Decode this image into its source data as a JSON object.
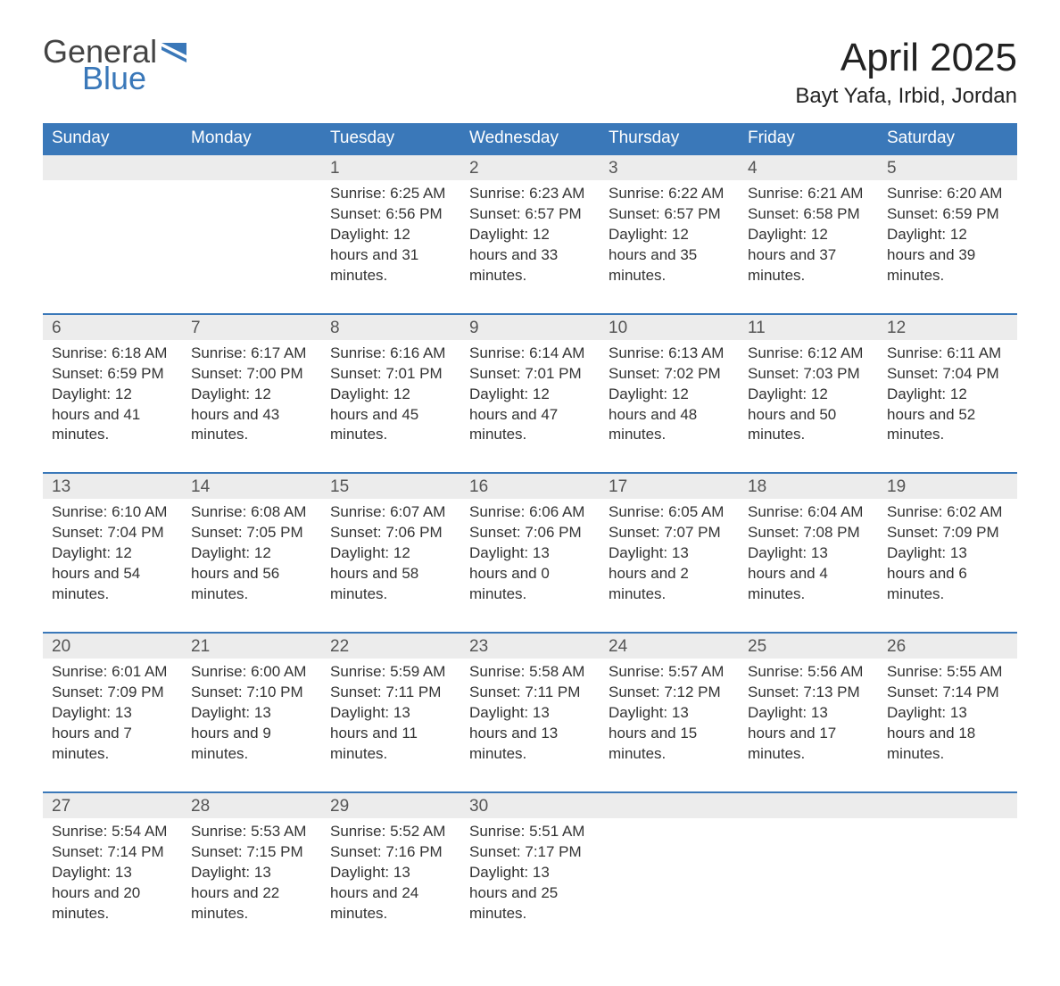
{
  "brand": {
    "word1": "General",
    "word2": "Blue",
    "accent_color": "#3a78b9"
  },
  "title": "April 2025",
  "location": "Bayt Yafa, Irbid, Jordan",
  "day_headers": [
    "Sunday",
    "Monday",
    "Tuesday",
    "Wednesday",
    "Thursday",
    "Friday",
    "Saturday"
  ],
  "colors": {
    "header_bg": "#3a78b9",
    "header_text": "#ffffff",
    "daynum_bg": "#ececec",
    "row_border": "#3a78b9",
    "body_text": "#333333",
    "background": "#ffffff"
  },
  "fonts": {
    "title_size_pt": 33,
    "location_size_pt": 18,
    "header_size_pt": 14,
    "cell_size_pt": 13
  },
  "labels": {
    "sunrise": "Sunrise:",
    "sunset": "Sunset:",
    "daylight": "Daylight:"
  },
  "weeks": [
    [
      null,
      null,
      {
        "day": "1",
        "sunrise": "6:25 AM",
        "sunset": "6:56 PM",
        "daylight": "12 hours and 31 minutes."
      },
      {
        "day": "2",
        "sunrise": "6:23 AM",
        "sunset": "6:57 PM",
        "daylight": "12 hours and 33 minutes."
      },
      {
        "day": "3",
        "sunrise": "6:22 AM",
        "sunset": "6:57 PM",
        "daylight": "12 hours and 35 minutes."
      },
      {
        "day": "4",
        "sunrise": "6:21 AM",
        "sunset": "6:58 PM",
        "daylight": "12 hours and 37 minutes."
      },
      {
        "day": "5",
        "sunrise": "6:20 AM",
        "sunset": "6:59 PM",
        "daylight": "12 hours and 39 minutes."
      }
    ],
    [
      {
        "day": "6",
        "sunrise": "6:18 AM",
        "sunset": "6:59 PM",
        "daylight": "12 hours and 41 minutes."
      },
      {
        "day": "7",
        "sunrise": "6:17 AM",
        "sunset": "7:00 PM",
        "daylight": "12 hours and 43 minutes."
      },
      {
        "day": "8",
        "sunrise": "6:16 AM",
        "sunset": "7:01 PM",
        "daylight": "12 hours and 45 minutes."
      },
      {
        "day": "9",
        "sunrise": "6:14 AM",
        "sunset": "7:01 PM",
        "daylight": "12 hours and 47 minutes."
      },
      {
        "day": "10",
        "sunrise": "6:13 AM",
        "sunset": "7:02 PM",
        "daylight": "12 hours and 48 minutes."
      },
      {
        "day": "11",
        "sunrise": "6:12 AM",
        "sunset": "7:03 PM",
        "daylight": "12 hours and 50 minutes."
      },
      {
        "day": "12",
        "sunrise": "6:11 AM",
        "sunset": "7:04 PM",
        "daylight": "12 hours and 52 minutes."
      }
    ],
    [
      {
        "day": "13",
        "sunrise": "6:10 AM",
        "sunset": "7:04 PM",
        "daylight": "12 hours and 54 minutes."
      },
      {
        "day": "14",
        "sunrise": "6:08 AM",
        "sunset": "7:05 PM",
        "daylight": "12 hours and 56 minutes."
      },
      {
        "day": "15",
        "sunrise": "6:07 AM",
        "sunset": "7:06 PM",
        "daylight": "12 hours and 58 minutes."
      },
      {
        "day": "16",
        "sunrise": "6:06 AM",
        "sunset": "7:06 PM",
        "daylight": "13 hours and 0 minutes."
      },
      {
        "day": "17",
        "sunrise": "6:05 AM",
        "sunset": "7:07 PM",
        "daylight": "13 hours and 2 minutes."
      },
      {
        "day": "18",
        "sunrise": "6:04 AM",
        "sunset": "7:08 PM",
        "daylight": "13 hours and 4 minutes."
      },
      {
        "day": "19",
        "sunrise": "6:02 AM",
        "sunset": "7:09 PM",
        "daylight": "13 hours and 6 minutes."
      }
    ],
    [
      {
        "day": "20",
        "sunrise": "6:01 AM",
        "sunset": "7:09 PM",
        "daylight": "13 hours and 7 minutes."
      },
      {
        "day": "21",
        "sunrise": "6:00 AM",
        "sunset": "7:10 PM",
        "daylight": "13 hours and 9 minutes."
      },
      {
        "day": "22",
        "sunrise": "5:59 AM",
        "sunset": "7:11 PM",
        "daylight": "13 hours and 11 minutes."
      },
      {
        "day": "23",
        "sunrise": "5:58 AM",
        "sunset": "7:11 PM",
        "daylight": "13 hours and 13 minutes."
      },
      {
        "day": "24",
        "sunrise": "5:57 AM",
        "sunset": "7:12 PM",
        "daylight": "13 hours and 15 minutes."
      },
      {
        "day": "25",
        "sunrise": "5:56 AM",
        "sunset": "7:13 PM",
        "daylight": "13 hours and 17 minutes."
      },
      {
        "day": "26",
        "sunrise": "5:55 AM",
        "sunset": "7:14 PM",
        "daylight": "13 hours and 18 minutes."
      }
    ],
    [
      {
        "day": "27",
        "sunrise": "5:54 AM",
        "sunset": "7:14 PM",
        "daylight": "13 hours and 20 minutes."
      },
      {
        "day": "28",
        "sunrise": "5:53 AM",
        "sunset": "7:15 PM",
        "daylight": "13 hours and 22 minutes."
      },
      {
        "day": "29",
        "sunrise": "5:52 AM",
        "sunset": "7:16 PM",
        "daylight": "13 hours and 24 minutes."
      },
      {
        "day": "30",
        "sunrise": "5:51 AM",
        "sunset": "7:17 PM",
        "daylight": "13 hours and 25 minutes."
      },
      null,
      null,
      null
    ]
  ]
}
